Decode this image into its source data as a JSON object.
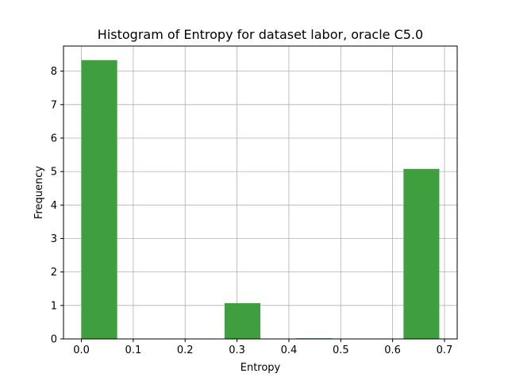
{
  "chart_data": {
    "type": "bar",
    "title": "Histogram of Entropy for dataset labor, oracle C5.0",
    "xlabel": "Entropy",
    "ylabel": "Frequency",
    "bins": [
      {
        "x0": 0.0,
        "x1": 0.069,
        "value": 8.33
      },
      {
        "x0": 0.069,
        "x1": 0.138,
        "value": 0
      },
      {
        "x0": 0.138,
        "x1": 0.207,
        "value": 0
      },
      {
        "x0": 0.207,
        "x1": 0.276,
        "value": 0
      },
      {
        "x0": 0.276,
        "x1": 0.345,
        "value": 1.07
      },
      {
        "x0": 0.345,
        "x1": 0.414,
        "value": 0
      },
      {
        "x0": 0.414,
        "x1": 0.483,
        "value": 0.02
      },
      {
        "x0": 0.483,
        "x1": 0.552,
        "value": 0
      },
      {
        "x0": 0.552,
        "x1": 0.621,
        "value": 0
      },
      {
        "x0": 0.621,
        "x1": 0.69,
        "value": 5.08
      }
    ],
    "xlim": [
      -0.0345,
      0.7245
    ],
    "ylim": [
      0,
      8.75
    ],
    "xticks": [
      0.0,
      0.1,
      0.2,
      0.3,
      0.4,
      0.5,
      0.6,
      0.7
    ],
    "xtick_labels": [
      "0.0",
      "0.1",
      "0.2",
      "0.3",
      "0.4",
      "0.5",
      "0.6",
      "0.7"
    ],
    "yticks": [
      0,
      1,
      2,
      3,
      4,
      5,
      6,
      7,
      8
    ],
    "ytick_labels": [
      "0",
      "1",
      "2",
      "3",
      "4",
      "5",
      "6",
      "7",
      "8"
    ],
    "grid": true,
    "bar_color": "#3f9f3f"
  }
}
